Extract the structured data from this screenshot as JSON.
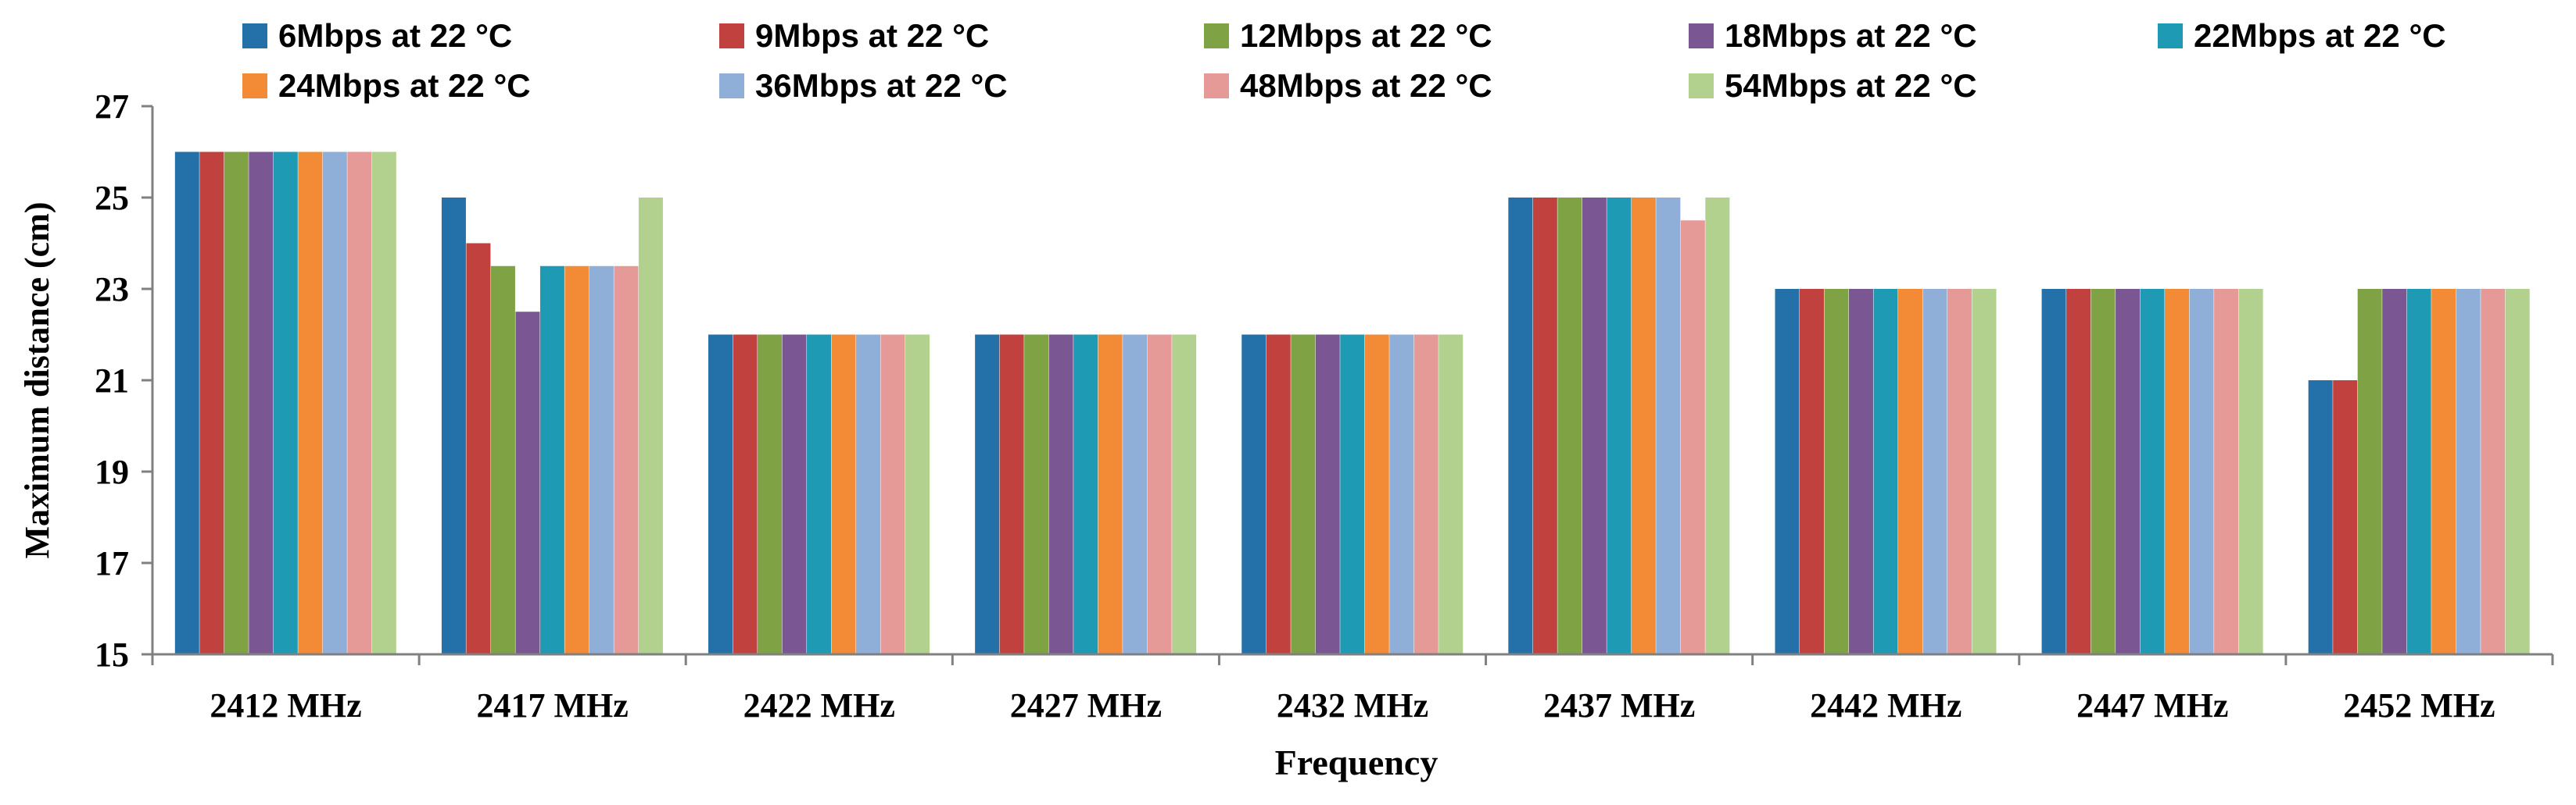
{
  "chart_data": {
    "type": "bar",
    "title": "",
    "xlabel": "Frequency",
    "ylabel": "Maximum distance (cm)",
    "ylim": [
      15,
      27
    ],
    "yticks": [
      15,
      17,
      19,
      21,
      23,
      25,
      27
    ],
    "grid": false,
    "legend_position": "top",
    "categories": [
      "2412 MHz",
      "2417 MHz",
      "2422 MHz",
      "2427 MHz",
      "2432 MHz",
      "2437 MHz",
      "2442 MHz",
      "2447 MHz",
      "2452 MHz"
    ],
    "series": [
      {
        "name": "6Mbps  at 22 °C",
        "color": "#2470a8",
        "values": [
          26,
          25,
          22,
          22,
          22,
          25,
          23,
          23,
          21
        ]
      },
      {
        "name": "9Mbps at 22 °C",
        "color": "#c0413d",
        "values": [
          26,
          24,
          22,
          22,
          22,
          25,
          23,
          23,
          21
        ]
      },
      {
        "name": "12Mbps at 22 °C",
        "color": "#7ea244",
        "values": [
          26,
          23.5,
          22,
          22,
          22,
          25,
          23,
          23,
          23
        ]
      },
      {
        "name": "18Mbps at 22 °C",
        "color": "#7a5792",
        "values": [
          26,
          22.5,
          22,
          22,
          22,
          25,
          23,
          23,
          23
        ]
      },
      {
        "name": "22Mbps at 22 °C",
        "color": "#1e9ab5",
        "values": [
          26,
          23.5,
          22,
          22,
          22,
          25,
          23,
          23,
          23
        ]
      },
      {
        "name": "24Mbps at 22 °C",
        "color": "#f28a36",
        "values": [
          26,
          23.5,
          22,
          22,
          22,
          25,
          23,
          23,
          23
        ]
      },
      {
        "name": "36Mbps at 22 °C",
        "color": "#8fafd8",
        "values": [
          26,
          23.5,
          22,
          22,
          22,
          25,
          23,
          23,
          23
        ]
      },
      {
        "name": "48Mbps at 22 °C",
        "color": "#e69a98",
        "values": [
          26,
          23.5,
          22,
          22,
          22,
          24.5,
          23,
          23,
          23
        ]
      },
      {
        "name": "54Mbps at 22 °C",
        "color": "#b2d08e",
        "values": [
          26,
          25,
          22,
          22,
          22,
          25,
          23,
          23,
          23
        ]
      }
    ]
  }
}
